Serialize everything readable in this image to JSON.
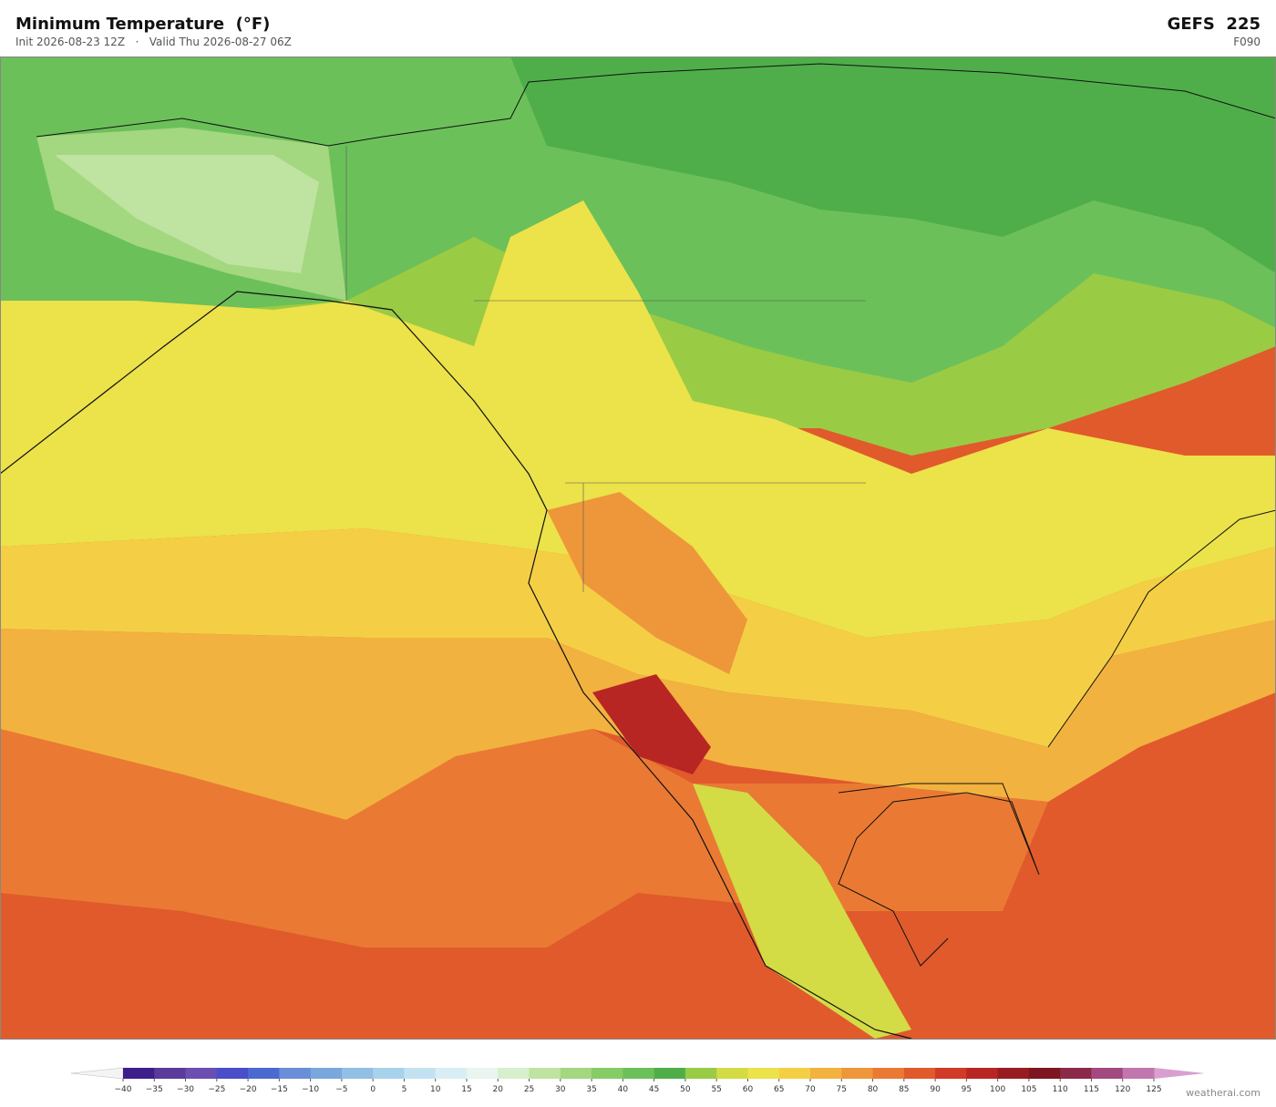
{
  "header": {
    "title": "Minimum Temperature  (°F)",
    "subtitle": "Init 2026-08-23 12Z   ·   Valid Thu 2026-08-27 06Z",
    "model": "GEFS  225",
    "forecast_hour": "F090"
  },
  "colorbar": {
    "ticks": [
      {
        "value": -40,
        "label": "−40"
      },
      {
        "value": -35,
        "label": "−35"
      },
      {
        "value": -30,
        "label": "−30"
      },
      {
        "value": -25,
        "label": "−25"
      },
      {
        "value": -20,
        "label": "−20"
      },
      {
        "value": -15,
        "label": "−15"
      },
      {
        "value": -10,
        "label": "−10"
      },
      {
        "value": -5,
        "label": "−5"
      },
      0,
      5,
      10,
      15,
      20,
      25,
      30,
      35,
      40,
      45,
      50,
      55,
      60,
      65,
      70,
      75,
      80,
      85,
      90,
      95,
      100,
      105,
      110,
      115,
      120,
      125
    ],
    "colors": [
      "#3d1f8a",
      "#5b3a9a",
      "#6b4fb0",
      "#4a4ec9",
      "#4a6ad0",
      "#6a8ed8",
      "#7aa7dc",
      "#92bfe4",
      "#a8d2ec",
      "#c2e2f2",
      "#d8eef4",
      "#e9f5ee",
      "#d6efcc",
      "#bfe3a0",
      "#a3d780",
      "#86cc66",
      "#6cc05a",
      "#4fae4a",
      "#9acb45",
      "#d3db45",
      "#ece24a",
      "#f4cf45",
      "#f2b23f",
      "#ee973a",
      "#ea7a33",
      "#e05a2c",
      "#d03a26",
      "#b82624",
      "#971d22",
      "#7d1620",
      "#8a2a48",
      "#a24a80",
      "#c276ae"
    ],
    "under_color": "#f4f4f4",
    "over_color": "#d8a0d0"
  },
  "footer": {
    "credit": "weatherai.com"
  }
}
